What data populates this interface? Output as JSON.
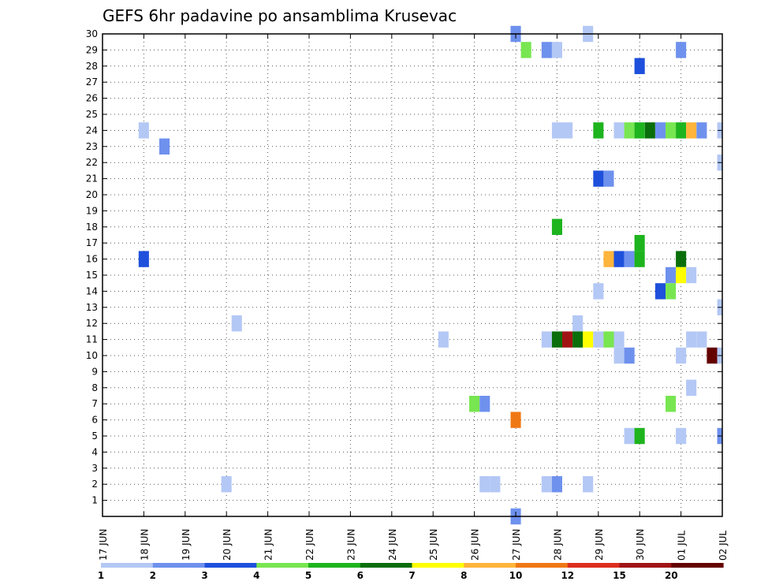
{
  "chart_data": {
    "type": "heatmap",
    "title": "GEFS 6hr padavine po ansamblima Krusevac",
    "xlabel": "",
    "ylabel": "",
    "x_ticks": [
      "17 JUN",
      "18 JUN",
      "19 JUN",
      "20 JUN",
      "21 JUN",
      "22 JUN",
      "23 JUN",
      "24 JUN",
      "25 JUN",
      "26 JUN",
      "27 JUN",
      "28 JUN",
      "29 JUN",
      "30 JUN",
      "01 JUL",
      "02 JUL"
    ],
    "y_ticks": [
      1,
      2,
      3,
      4,
      5,
      6,
      7,
      8,
      9,
      10,
      11,
      12,
      13,
      14,
      15,
      16,
      17,
      18,
      19,
      20,
      21,
      22,
      23,
      24,
      25,
      26,
      27,
      28,
      29,
      30
    ],
    "xlim": [
      0,
      15
    ],
    "ylim": [
      0,
      30
    ],
    "step_days": 0.25,
    "grid": true,
    "legend": {
      "position": "bottom",
      "labels": [
        "1",
        "2",
        "3",
        "4",
        "5",
        "6",
        "7",
        "8",
        "10",
        "12",
        "15",
        "20"
      ],
      "colors": [
        "#b4c8f5",
        "#6e91ee",
        "#1e50dc",
        "#78e650",
        "#1eb41e",
        "#0a6e0a",
        "#ffff00",
        "#ffb43c",
        "#f07814",
        "#dc2d1e",
        "#a01414",
        "#640000"
      ]
    },
    "cells": [
      {
        "x": 10.0,
        "y": 30,
        "c": 1
      },
      {
        "x": 11.75,
        "y": 30,
        "c": 0
      },
      {
        "x": 10.25,
        "y": 29,
        "c": 3
      },
      {
        "x": 10.75,
        "y": 29,
        "c": 1
      },
      {
        "x": 11.0,
        "y": 29,
        "c": 0
      },
      {
        "x": 14.0,
        "y": 29,
        "c": 1
      },
      {
        "x": 13.0,
        "y": 28,
        "c": 2
      },
      {
        "x": 1.0,
        "y": 24,
        "c": 0
      },
      {
        "x": 11.0,
        "y": 24,
        "c": 0
      },
      {
        "x": 11.25,
        "y": 24,
        "c": 0
      },
      {
        "x": 12.0,
        "y": 24,
        "c": 4
      },
      {
        "x": 12.5,
        "y": 24,
        "c": 0
      },
      {
        "x": 12.75,
        "y": 24,
        "c": 3
      },
      {
        "x": 13.0,
        "y": 24,
        "c": 4
      },
      {
        "x": 13.25,
        "y": 24,
        "c": 5
      },
      {
        "x": 13.5,
        "y": 24,
        "c": 1
      },
      {
        "x": 13.75,
        "y": 24,
        "c": 3
      },
      {
        "x": 14.0,
        "y": 24,
        "c": 4
      },
      {
        "x": 14.25,
        "y": 24,
        "c": 7
      },
      {
        "x": 14.5,
        "y": 24,
        "c": 1
      },
      {
        "x": 15.0,
        "y": 24,
        "c": 0
      },
      {
        "x": 1.5,
        "y": 23,
        "c": 1
      },
      {
        "x": 15.0,
        "y": 22,
        "c": 0
      },
      {
        "x": 12.0,
        "y": 21,
        "c": 2
      },
      {
        "x": 12.25,
        "y": 21,
        "c": 1
      },
      {
        "x": 11.0,
        "y": 18,
        "c": 4
      },
      {
        "x": 13.0,
        "y": 17,
        "c": 4
      },
      {
        "x": 1.0,
        "y": 16,
        "c": 2
      },
      {
        "x": 12.25,
        "y": 16,
        "c": 7
      },
      {
        "x": 12.5,
        "y": 16,
        "c": 2
      },
      {
        "x": 12.75,
        "y": 16,
        "c": 1
      },
      {
        "x": 13.0,
        "y": 16,
        "c": 4
      },
      {
        "x": 14.0,
        "y": 16,
        "c": 5
      },
      {
        "x": 13.75,
        "y": 15,
        "c": 1
      },
      {
        "x": 14.0,
        "y": 15,
        "c": 6
      },
      {
        "x": 14.25,
        "y": 15,
        "c": 0
      },
      {
        "x": 12.0,
        "y": 14,
        "c": 0
      },
      {
        "x": 13.5,
        "y": 14,
        "c": 2
      },
      {
        "x": 13.75,
        "y": 14,
        "c": 3
      },
      {
        "x": 15.0,
        "y": 13,
        "c": 0
      },
      {
        "x": 3.25,
        "y": 12,
        "c": 0
      },
      {
        "x": 11.5,
        "y": 12,
        "c": 0
      },
      {
        "x": 8.25,
        "y": 11,
        "c": 0
      },
      {
        "x": 10.75,
        "y": 11,
        "c": 0
      },
      {
        "x": 11.0,
        "y": 11,
        "c": 5
      },
      {
        "x": 11.25,
        "y": 11,
        "c": 10
      },
      {
        "x": 11.5,
        "y": 11,
        "c": 5
      },
      {
        "x": 11.75,
        "y": 11,
        "c": 6
      },
      {
        "x": 12.0,
        "y": 11,
        "c": 0
      },
      {
        "x": 12.25,
        "y": 11,
        "c": 3
      },
      {
        "x": 12.5,
        "y": 11,
        "c": 0
      },
      {
        "x": 14.25,
        "y": 11,
        "c": 0
      },
      {
        "x": 14.5,
        "y": 11,
        "c": 0
      },
      {
        "x": 12.5,
        "y": 10,
        "c": 0
      },
      {
        "x": 12.75,
        "y": 10,
        "c": 1
      },
      {
        "x": 14.0,
        "y": 10,
        "c": 0
      },
      {
        "x": 14.75,
        "y": 10,
        "c": 11
      },
      {
        "x": 15.0,
        "y": 10,
        "c": 0
      },
      {
        "x": 14.25,
        "y": 8,
        "c": 0
      },
      {
        "x": 9.0,
        "y": 7,
        "c": 3
      },
      {
        "x": 9.25,
        "y": 7,
        "c": 1
      },
      {
        "x": 13.75,
        "y": 7,
        "c": 3
      },
      {
        "x": 10.0,
        "y": 6,
        "c": 8
      },
      {
        "x": 12.75,
        "y": 5,
        "c": 0
      },
      {
        "x": 13.0,
        "y": 5,
        "c": 4
      },
      {
        "x": 14.0,
        "y": 5,
        "c": 0
      },
      {
        "x": 15.0,
        "y": 5,
        "c": 1
      },
      {
        "x": 3.0,
        "y": 2,
        "c": 0
      },
      {
        "x": 9.25,
        "y": 2,
        "c": 0
      },
      {
        "x": 9.5,
        "y": 2,
        "c": 0
      },
      {
        "x": 10.75,
        "y": 2,
        "c": 0
      },
      {
        "x": 11.0,
        "y": 2,
        "c": 1
      },
      {
        "x": 11.75,
        "y": 2,
        "c": 0
      },
      {
        "x": 10.0,
        "y": 0,
        "c": 1
      }
    ]
  }
}
